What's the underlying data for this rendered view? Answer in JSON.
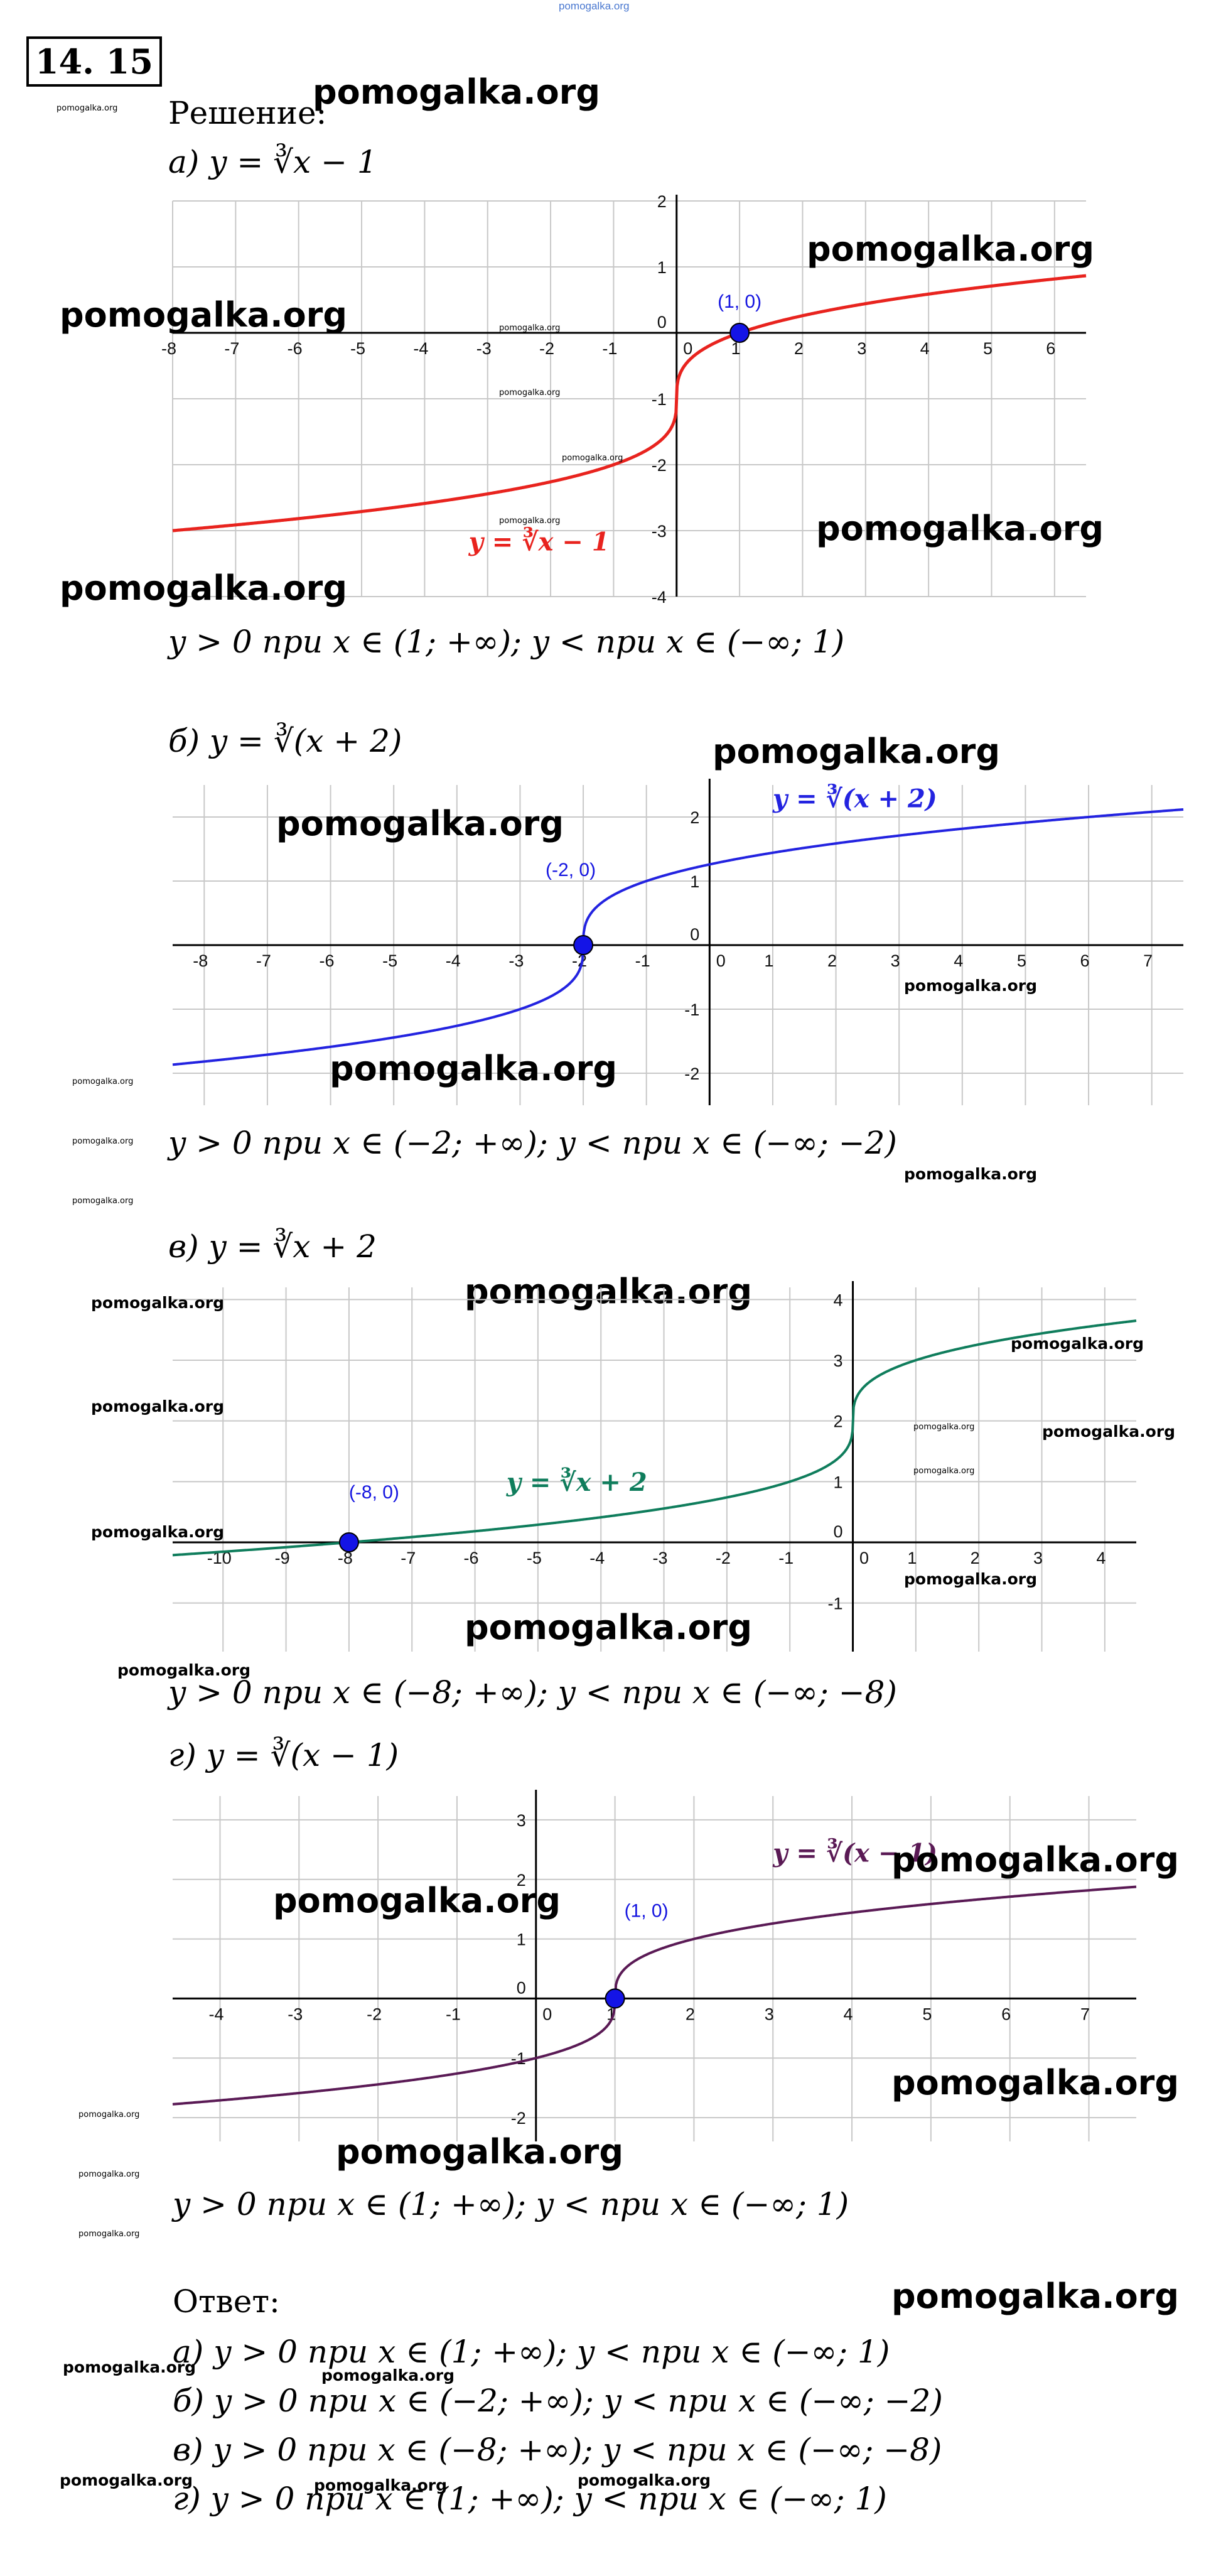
{
  "site_top": "pomogalka.org",
  "problem_number": "14. 15",
  "solution_label": "Решение:",
  "watermark": "pomogalka.org",
  "parts": [
    {
      "header": "а) y = ∛x − 1",
      "result": "y > 0 при x ∈ (1; +∞); y < при x ∈ (−∞; 1)"
    },
    {
      "header": "б) y = ∛(x + 2)",
      "result": "y > 0 при x ∈ (−2; +∞); y < при x ∈ (−∞; −2)"
    },
    {
      "header": "в)  y = ∛x + 2",
      "result": "y > 0 при x ∈ (−8; +∞); y < при x ∈ (−∞; −8)"
    },
    {
      "header": "г) y = ∛(x − 1)",
      "result": "y > 0 при x ∈ (1; +∞); y < при x ∈ (−∞; 1)"
    }
  ],
  "answer_label": "Ответ:",
  "answers": [
    "а) y > 0 при x ∈ (1; +∞); y < при x ∈ (−∞; 1)",
    "б) y > 0 при x ∈ (−2; +∞); y < при x ∈ (−∞; −2)",
    "в) y > 0 при x ∈ (−8; +∞); y < при x ∈ (−∞; −8)",
    "г) y > 0 при x ∈ (1; +∞); y < при x ∈ (−∞; 1)"
  ],
  "chart_data": [
    {
      "type": "line",
      "function": "y = cbrt(x) - 1",
      "curve_label": "y = ∛x − 1",
      "color": "#e8231e",
      "xlim": [
        -8,
        6.5
      ],
      "ylim": [
        -4,
        2
      ],
      "xticks": [
        -8,
        -7,
        -6,
        -5,
        -4,
        -3,
        -2,
        -1,
        0,
        1,
        2,
        3,
        4,
        5,
        6
      ],
      "yticks": [
        -4,
        -3,
        -2,
        -1,
        0,
        1,
        2
      ],
      "point": {
        "x": 1,
        "y": 0,
        "label": "(1, 0)"
      },
      "grid": true
    },
    {
      "type": "line",
      "function": "y = cbrt(x + 2)",
      "curve_label": "y = ∛(x + 2)",
      "color": "#2323e0",
      "xlim": [
        -8.5,
        7.5
      ],
      "ylim": [
        -2.5,
        2.5
      ],
      "xticks": [
        -8,
        -7,
        -6,
        -5,
        -4,
        -3,
        -2,
        -1,
        0,
        1,
        2,
        3,
        4,
        5,
        6,
        7
      ],
      "yticks": [
        -2,
        -1,
        0,
        1,
        2
      ],
      "point": {
        "x": -2,
        "y": 0,
        "label": "(-2, 0)"
      },
      "grid": true
    },
    {
      "type": "line",
      "function": "y = cbrt(x) + 2",
      "curve_label": "y = ∛x + 2",
      "color": "#0f7d5c",
      "xlim": [
        -10.8,
        4.5
      ],
      "ylim": [
        -1.8,
        4.2
      ],
      "xticks": [
        -10,
        -9,
        -8,
        -7,
        -6,
        -5,
        -4,
        -3,
        -2,
        -1,
        0,
        1,
        2,
        3,
        4
      ],
      "yticks": [
        -1,
        0,
        1,
        2,
        3,
        4
      ],
      "point": {
        "x": -8,
        "y": 0,
        "label": "(-8, 0)"
      },
      "grid": true
    },
    {
      "type": "line",
      "function": "y = cbrt(x - 1)",
      "curve_label": "y = ∛(x − 1)",
      "color": "#5a1a55",
      "xlim": [
        -4.6,
        7.6
      ],
      "ylim": [
        -2.4,
        3.4
      ],
      "xticks": [
        -4,
        -3,
        -2,
        -1,
        0,
        1,
        2,
        3,
        4,
        5,
        6,
        7
      ],
      "yticks": [
        -2,
        -1,
        0,
        1,
        2,
        3
      ],
      "point": {
        "x": 1,
        "y": 0,
        "label": "(1, 0)"
      },
      "grid": true
    }
  ]
}
